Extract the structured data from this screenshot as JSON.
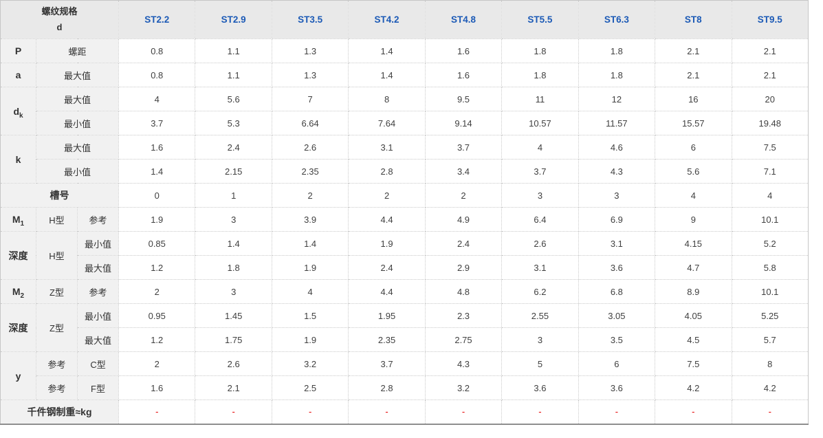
{
  "table": {
    "header": {
      "spec_line1": "螺纹规格",
      "spec_line2": "d",
      "columns": [
        "ST2.2",
        "ST2.9",
        "ST3.5",
        "ST4.2",
        "ST4.8",
        "ST5.5",
        "ST6.3",
        "ST8",
        "ST9.5"
      ]
    },
    "rows": [
      {
        "name": "row-P-pitch",
        "labels": [
          {
            "t": "P",
            "bold": true
          },
          {
            "t": "螺距",
            "cs": 2
          }
        ],
        "values": [
          "0.8",
          "1.1",
          "1.3",
          "1.4",
          "1.6",
          "1.8",
          "1.8",
          "2.1",
          "2.1"
        ]
      },
      {
        "name": "row-a-max",
        "labels": [
          {
            "t": "a",
            "bold": true
          },
          {
            "t": "最大值",
            "cs": 2
          }
        ],
        "values": [
          "0.8",
          "1.1",
          "1.3",
          "1.4",
          "1.6",
          "1.8",
          "1.8",
          "2.1",
          "2.1"
        ]
      },
      {
        "name": "row-dk-max",
        "labels": [
          {
            "t": "d",
            "sub": "k",
            "bold": true,
            "rs": 2
          },
          {
            "t": "最大值",
            "cs": 2
          }
        ],
        "values": [
          "4",
          "5.6",
          "7",
          "8",
          "9.5",
          "11",
          "12",
          "16",
          "20"
        ]
      },
      {
        "name": "row-dk-min",
        "labels": [
          {
            "t": "最小值",
            "cs": 2
          }
        ],
        "values": [
          "3.7",
          "5.3",
          "6.64",
          "7.64",
          "9.14",
          "10.57",
          "11.57",
          "15.57",
          "19.48"
        ]
      },
      {
        "name": "row-k-max",
        "labels": [
          {
            "t": "k",
            "bold": true,
            "rs": 2
          },
          {
            "t": "最大值",
            "cs": 2
          }
        ],
        "values": [
          "1.6",
          "2.4",
          "2.6",
          "3.1",
          "3.7",
          "4",
          "4.6",
          "6",
          "7.5"
        ]
      },
      {
        "name": "row-k-min",
        "labels": [
          {
            "t": "最小值",
            "cs": 2
          }
        ],
        "values": [
          "1.4",
          "2.15",
          "2.35",
          "2.8",
          "3.4",
          "3.7",
          "4.3",
          "5.6",
          "7.1"
        ]
      },
      {
        "name": "row-slot-number",
        "labels": [
          {
            "t": "槽号",
            "bold": true,
            "cs": 3
          }
        ],
        "values": [
          "0",
          "1",
          "2",
          "2",
          "2",
          "3",
          "3",
          "4",
          "4"
        ]
      },
      {
        "name": "row-M1-H-ref",
        "labels": [
          {
            "t": "M",
            "sub": "1",
            "bold": true
          },
          {
            "t": "H型"
          },
          {
            "t": "参考"
          }
        ],
        "values": [
          "1.9",
          "3",
          "3.9",
          "4.4",
          "4.9",
          "6.4",
          "6.9",
          "9",
          "10.1"
        ]
      },
      {
        "name": "row-depth-H-min",
        "labels": [
          {
            "t": "深度",
            "bold": true,
            "rs": 2
          },
          {
            "t": "H型",
            "rs": 2
          },
          {
            "t": "最小值"
          }
        ],
        "values": [
          "0.85",
          "1.4",
          "1.4",
          "1.9",
          "2.4",
          "2.6",
          "3.1",
          "4.15",
          "5.2"
        ]
      },
      {
        "name": "row-depth-H-max",
        "labels": [
          {
            "t": "最大值"
          }
        ],
        "values": [
          "1.2",
          "1.8",
          "1.9",
          "2.4",
          "2.9",
          "3.1",
          "3.6",
          "4.7",
          "5.8"
        ]
      },
      {
        "name": "row-M2-Z-ref",
        "labels": [
          {
            "t": "M",
            "sub": "2",
            "bold": true
          },
          {
            "t": "Z型"
          },
          {
            "t": "参考"
          }
        ],
        "values": [
          "2",
          "3",
          "4",
          "4.4",
          "4.8",
          "6.2",
          "6.8",
          "8.9",
          "10.1"
        ]
      },
      {
        "name": "row-depth-Z-min",
        "labels": [
          {
            "t": "深度",
            "bold": true,
            "rs": 2
          },
          {
            "t": "Z型",
            "rs": 2
          },
          {
            "t": "最小值"
          }
        ],
        "values": [
          "0.95",
          "1.45",
          "1.5",
          "1.95",
          "2.3",
          "2.55",
          "3.05",
          "4.05",
          "5.25"
        ]
      },
      {
        "name": "row-depth-Z-max",
        "labels": [
          {
            "t": "最大值"
          }
        ],
        "values": [
          "1.2",
          "1.75",
          "1.9",
          "2.35",
          "2.75",
          "3",
          "3.5",
          "4.5",
          "5.7"
        ]
      },
      {
        "name": "row-y-C-ref",
        "labels": [
          {
            "t": "y",
            "bold": true,
            "rs": 2
          },
          {
            "t": "参考"
          },
          {
            "t": "C型"
          }
        ],
        "values": [
          "2",
          "2.6",
          "3.2",
          "3.7",
          "4.3",
          "5",
          "6",
          "7.5",
          "8"
        ]
      },
      {
        "name": "row-y-F-ref",
        "labels": [
          {
            "t": "参考"
          },
          {
            "t": "F型"
          }
        ],
        "values": [
          "1.6",
          "2.1",
          "2.5",
          "2.8",
          "3.2",
          "3.6",
          "3.6",
          "4.2",
          "4.2"
        ]
      },
      {
        "name": "row-weight-per-thousand",
        "red": true,
        "labels": [
          {
            "t": "千件钢制重≈kg",
            "bold": true,
            "cs": 3
          }
        ],
        "values": [
          "-",
          "-",
          "-",
          "-",
          "-",
          "-",
          "-",
          "-",
          "-"
        ]
      }
    ]
  },
  "colors": {
    "header_blue": "#1c5ab6",
    "header_bg": "#e9e9e9",
    "label_bg": "#f1f1f1",
    "red_dash": "#e60000"
  }
}
